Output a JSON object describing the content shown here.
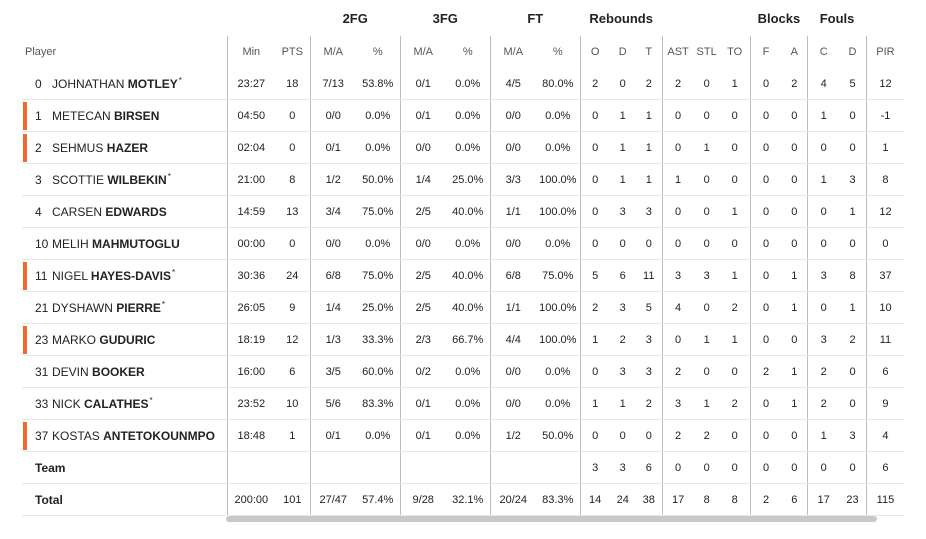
{
  "headers": {
    "groups": {
      "fg2": "2FG",
      "fg3": "3FG",
      "ft": "FT",
      "reb": "Rebounds",
      "blocks": "Blocks",
      "fouls": "Fouls"
    },
    "columns": [
      "Player",
      "Min",
      "PTS",
      "M/A",
      "%",
      "M/A",
      "%",
      "M/A",
      "%",
      "O",
      "D",
      "T",
      "AST",
      "STL",
      "TO",
      "F",
      "A",
      "C",
      "D",
      "PIR"
    ]
  },
  "players": [
    {
      "num": "0",
      "first": "JOHNATHAN",
      "last": "MOTLEY",
      "starter": true,
      "marked": false,
      "stats": [
        "23:27",
        "18",
        "7/13",
        "53.8%",
        "0/1",
        "0.0%",
        "4/5",
        "80.0%",
        "2",
        "0",
        "2",
        "2",
        "0",
        "1",
        "0",
        "2",
        "4",
        "5",
        "12"
      ]
    },
    {
      "num": "1",
      "first": "METECAN",
      "last": "BIRSEN",
      "starter": false,
      "marked": true,
      "stats": [
        "04:50",
        "0",
        "0/0",
        "0.0%",
        "0/1",
        "0.0%",
        "0/0",
        "0.0%",
        "0",
        "1",
        "1",
        "0",
        "0",
        "0",
        "0",
        "0",
        "1",
        "0",
        "-1"
      ]
    },
    {
      "num": "2",
      "first": "SEHMUS",
      "last": "HAZER",
      "starter": false,
      "marked": true,
      "stats": [
        "02:04",
        "0",
        "0/1",
        "0.0%",
        "0/0",
        "0.0%",
        "0/0",
        "0.0%",
        "0",
        "1",
        "1",
        "0",
        "1",
        "0",
        "0",
        "0",
        "0",
        "0",
        "1"
      ]
    },
    {
      "num": "3",
      "first": "SCOTTIE",
      "last": "WILBEKIN",
      "starter": true,
      "marked": false,
      "stats": [
        "21:00",
        "8",
        "1/2",
        "50.0%",
        "1/4",
        "25.0%",
        "3/3",
        "100.0%",
        "0",
        "1",
        "1",
        "1",
        "0",
        "0",
        "0",
        "0",
        "1",
        "3",
        "8"
      ]
    },
    {
      "num": "4",
      "first": "CARSEN",
      "last": "EDWARDS",
      "starter": false,
      "marked": false,
      "stats": [
        "14:59",
        "13",
        "3/4",
        "75.0%",
        "2/5",
        "40.0%",
        "1/1",
        "100.0%",
        "0",
        "3",
        "3",
        "0",
        "0",
        "1",
        "0",
        "0",
        "0",
        "1",
        "12"
      ]
    },
    {
      "num": "10",
      "first": "MELIH",
      "last": "MAHMUTOGLU",
      "starter": false,
      "marked": false,
      "stats": [
        "00:00",
        "0",
        "0/0",
        "0.0%",
        "0/0",
        "0.0%",
        "0/0",
        "0.0%",
        "0",
        "0",
        "0",
        "0",
        "0",
        "0",
        "0",
        "0",
        "0",
        "0",
        "0"
      ]
    },
    {
      "num": "11",
      "first": "NIGEL",
      "last": "HAYES-DAVIS",
      "starter": true,
      "marked": true,
      "stats": [
        "30:36",
        "24",
        "6/8",
        "75.0%",
        "2/5",
        "40.0%",
        "6/8",
        "75.0%",
        "5",
        "6",
        "11",
        "3",
        "3",
        "1",
        "0",
        "1",
        "3",
        "8",
        "37"
      ]
    },
    {
      "num": "21",
      "first": "DYSHAWN",
      "last": "PIERRE",
      "starter": true,
      "marked": false,
      "stats": [
        "26:05",
        "9",
        "1/4",
        "25.0%",
        "2/5",
        "40.0%",
        "1/1",
        "100.0%",
        "2",
        "3",
        "5",
        "4",
        "0",
        "2",
        "0",
        "1",
        "0",
        "1",
        "10"
      ]
    },
    {
      "num": "23",
      "first": "MARKO",
      "last": "GUDURIC",
      "starter": false,
      "marked": true,
      "stats": [
        "18:19",
        "12",
        "1/3",
        "33.3%",
        "2/3",
        "66.7%",
        "4/4",
        "100.0%",
        "1",
        "2",
        "3",
        "0",
        "1",
        "1",
        "0",
        "0",
        "3",
        "2",
        "11"
      ]
    },
    {
      "num": "31",
      "first": "DEVIN",
      "last": "BOOKER",
      "starter": false,
      "marked": false,
      "stats": [
        "16:00",
        "6",
        "3/5",
        "60.0%",
        "0/2",
        "0.0%",
        "0/0",
        "0.0%",
        "0",
        "3",
        "3",
        "2",
        "0",
        "0",
        "2",
        "1",
        "2",
        "0",
        "6"
      ]
    },
    {
      "num": "33",
      "first": "NICK",
      "last": "CALATHES",
      "starter": true,
      "marked": false,
      "stats": [
        "23:52",
        "10",
        "5/6",
        "83.3%",
        "0/1",
        "0.0%",
        "0/0",
        "0.0%",
        "1",
        "1",
        "2",
        "3",
        "1",
        "2",
        "0",
        "1",
        "2",
        "0",
        "9"
      ]
    },
    {
      "num": "37",
      "first": "KOSTAS",
      "last": "ANTETOKOUNMPO",
      "starter": false,
      "marked": true,
      "stats": [
        "18:48",
        "1",
        "0/1",
        "0.0%",
        "0/1",
        "0.0%",
        "1/2",
        "50.0%",
        "0",
        "0",
        "0",
        "2",
        "2",
        "0",
        "0",
        "0",
        "1",
        "3",
        "4"
      ]
    }
  ],
  "team": {
    "label": "Team",
    "stats": [
      "",
      "",
      "",
      "",
      "",
      "",
      "",
      "",
      "3",
      "3",
      "6",
      "0",
      "0",
      "0",
      "0",
      "0",
      "0",
      "0",
      "6"
    ]
  },
  "total": {
    "label": "Total",
    "stats": [
      "200:00",
      "101",
      "27/47",
      "57.4%",
      "9/28",
      "32.1%",
      "20/24",
      "83.3%",
      "14",
      "24",
      "38",
      "17",
      "8",
      "8",
      "2",
      "6",
      "17",
      "23",
      "115"
    ]
  },
  "colors": {
    "accent": "#f26a2a"
  }
}
